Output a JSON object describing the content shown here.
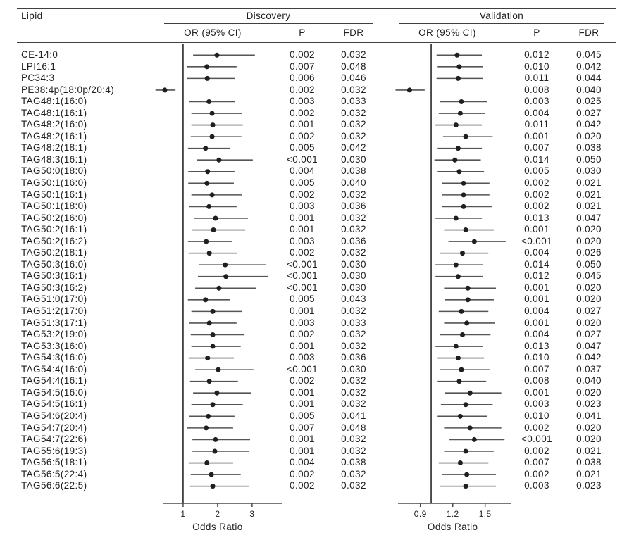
{
  "header": {
    "lipid_col": "Lipid",
    "groups": [
      {
        "label": "Discovery",
        "cols": [
          "OR (95% CI)",
          "P",
          "FDR"
        ]
      },
      {
        "label": "Validation",
        "cols": [
          "OR (95% CI)",
          "P",
          "FDR"
        ]
      }
    ]
  },
  "style": {
    "background": "#ffffff",
    "text": "#1f1f1f",
    "rule": "#3f3f3f",
    "whisker": "#555555",
    "marker": "#1f1f1f",
    "axis": "#4a4a4a"
  },
  "chart_data": {
    "type": "forest",
    "panels": {
      "discovery": {
        "name": "Discovery",
        "axis": {
          "ticks": [
            1,
            2,
            3
          ],
          "tick_labels": [
            "1",
            "2",
            "3"
          ],
          "label": "Odds Ratio",
          "ref_line": 1,
          "render_domain": [
            0.43,
            3.86
          ]
        }
      },
      "validation": {
        "name": "Validation",
        "axis": {
          "ticks": [
            0.9,
            1.2,
            1.5
          ],
          "tick_labels": [
            "0.9",
            "1.2",
            "1.5"
          ],
          "label": "Odds Ratio",
          "ref_line": 1.0,
          "render_domain": [
            0.693,
            1.737
          ]
        }
      }
    },
    "rows": [
      {
        "lipid": "CE-14:0",
        "discovery": {
          "or": 1.98,
          "lo": 1.29,
          "hi": 3.08,
          "p": "0.002",
          "fdr": "0.032"
        },
        "validation": {
          "or": 1.24,
          "lo": 1.05,
          "hi": 1.47,
          "p": "0.012",
          "fdr": "0.045"
        }
      },
      {
        "lipid": "LPI16:1",
        "discovery": {
          "or": 1.69,
          "lo": 1.12,
          "hi": 2.55,
          "p": "0.007",
          "fdr": "0.048"
        },
        "validation": {
          "or": 1.26,
          "lo": 1.06,
          "hi": 1.48,
          "p": "0.010",
          "fdr": "0.042"
        }
      },
      {
        "lipid": "PC34:3",
        "discovery": {
          "or": 1.7,
          "lo": 1.12,
          "hi": 2.51,
          "p": "0.006",
          "fdr": "0.046"
        },
        "validation": {
          "or": 1.25,
          "lo": 1.05,
          "hi": 1.48,
          "p": "0.011",
          "fdr": "0.044"
        }
      },
      {
        "lipid": "PE38:4p(18:0p/20:4)",
        "discovery": {
          "or": 0.47,
          "lo": 0.2,
          "hi": 0.78,
          "p": "0.002",
          "fdr": "0.032"
        },
        "validation": {
          "or": 0.8,
          "lo": 0.67,
          "hi": 0.94,
          "p": "0.008",
          "fdr": "0.040"
        }
      },
      {
        "lipid": "TAG48:1(16:0)",
        "discovery": {
          "or": 1.75,
          "lo": 1.18,
          "hi": 2.51,
          "p": "0.003",
          "fdr": "0.033"
        },
        "validation": {
          "or": 1.28,
          "lo": 1.08,
          "hi": 1.52,
          "p": "0.003",
          "fdr": "0.025"
        }
      },
      {
        "lipid": "TAG48:1(16:1)",
        "discovery": {
          "or": 1.84,
          "lo": 1.24,
          "hi": 2.71,
          "p": "0.002",
          "fdr": "0.032"
        },
        "validation": {
          "or": 1.27,
          "lo": 1.07,
          "hi": 1.5,
          "p": "0.004",
          "fdr": "0.027"
        }
      },
      {
        "lipid": "TAG48:2(16:0)",
        "discovery": {
          "or": 1.86,
          "lo": 1.24,
          "hi": 2.73,
          "p": "0.001",
          "fdr": "0.032"
        },
        "validation": {
          "or": 1.23,
          "lo": 1.04,
          "hi": 1.47,
          "p": "0.011",
          "fdr": "0.042"
        }
      },
      {
        "lipid": "TAG48:2(16:1)",
        "discovery": {
          "or": 1.84,
          "lo": 1.22,
          "hi": 2.69,
          "p": "0.002",
          "fdr": "0.032"
        },
        "validation": {
          "or": 1.32,
          "lo": 1.11,
          "hi": 1.57,
          "p": "0.001",
          "fdr": "0.020"
        }
      },
      {
        "lipid": "TAG48:2(18:1)",
        "discovery": {
          "or": 1.65,
          "lo": 1.14,
          "hi": 2.37,
          "p": "0.005",
          "fdr": "0.042"
        },
        "validation": {
          "or": 1.25,
          "lo": 1.06,
          "hi": 1.47,
          "p": "0.007",
          "fdr": "0.038"
        }
      },
      {
        "lipid": "TAG48:3(16:1)",
        "discovery": {
          "or": 2.04,
          "lo": 1.39,
          "hi": 3.02,
          "p": "<0.001",
          "fdr": "0.030"
        },
        "validation": {
          "or": 1.22,
          "lo": 1.03,
          "hi": 1.46,
          "p": "0.014",
          "fdr": "0.050"
        }
      },
      {
        "lipid": "TAG50:0(18:0)",
        "discovery": {
          "or": 1.71,
          "lo": 1.15,
          "hi": 2.49,
          "p": "0.004",
          "fdr": "0.038"
        },
        "validation": {
          "or": 1.26,
          "lo": 1.06,
          "hi": 1.49,
          "p": "0.005",
          "fdr": "0.030"
        }
      },
      {
        "lipid": "TAG50:1(16:0)",
        "discovery": {
          "or": 1.69,
          "lo": 1.15,
          "hi": 2.47,
          "p": "0.005",
          "fdr": "0.040"
        },
        "validation": {
          "or": 1.3,
          "lo": 1.1,
          "hi": 1.54,
          "p": "0.002",
          "fdr": "0.021"
        }
      },
      {
        "lipid": "TAG50:1(16:1)",
        "discovery": {
          "or": 1.84,
          "lo": 1.24,
          "hi": 2.71,
          "p": "0.002",
          "fdr": "0.032"
        },
        "validation": {
          "or": 1.3,
          "lo": 1.1,
          "hi": 1.54,
          "p": "0.002",
          "fdr": "0.021"
        }
      },
      {
        "lipid": "TAG50:1(18:0)",
        "discovery": {
          "or": 1.75,
          "lo": 1.18,
          "hi": 2.55,
          "p": "0.003",
          "fdr": "0.036"
        },
        "validation": {
          "or": 1.3,
          "lo": 1.1,
          "hi": 1.56,
          "p": "0.002",
          "fdr": "0.021"
        }
      },
      {
        "lipid": "TAG50:2(16:0)",
        "discovery": {
          "or": 1.94,
          "lo": 1.31,
          "hi": 2.88,
          "p": "0.001",
          "fdr": "0.032"
        },
        "validation": {
          "or": 1.23,
          "lo": 1.04,
          "hi": 1.47,
          "p": "0.013",
          "fdr": "0.047"
        }
      },
      {
        "lipid": "TAG50:2(16:1)",
        "discovery": {
          "or": 1.88,
          "lo": 1.27,
          "hi": 2.8,
          "p": "0.001",
          "fdr": "0.032"
        },
        "validation": {
          "or": 1.32,
          "lo": 1.12,
          "hi": 1.58,
          "p": "0.001",
          "fdr": "0.020"
        }
      },
      {
        "lipid": "TAG50:2(16:2)",
        "discovery": {
          "or": 1.67,
          "lo": 1.14,
          "hi": 2.43,
          "p": "0.003",
          "fdr": "0.036"
        },
        "validation": {
          "or": 1.4,
          "lo": 1.16,
          "hi": 1.69,
          "p": "<0.001",
          "fdr": "0.020"
        }
      },
      {
        "lipid": "TAG50:2(18:1)",
        "discovery": {
          "or": 1.76,
          "lo": 1.16,
          "hi": 2.57,
          "p": "0.002",
          "fdr": "0.032"
        },
        "validation": {
          "or": 1.29,
          "lo": 1.08,
          "hi": 1.53,
          "p": "0.004",
          "fdr": "0.026"
        }
      },
      {
        "lipid": "TAG50:3(16:0)",
        "discovery": {
          "or": 2.22,
          "lo": 1.45,
          "hi": 3.39,
          "p": "<0.001",
          "fdr": "0.030"
        },
        "validation": {
          "or": 1.23,
          "lo": 1.04,
          "hi": 1.48,
          "p": "0.014",
          "fdr": "0.050"
        }
      },
      {
        "lipid": "TAG50:3(16:1)",
        "discovery": {
          "or": 2.24,
          "lo": 1.43,
          "hi": 3.47,
          "p": "<0.001",
          "fdr": "0.030"
        },
        "validation": {
          "or": 1.25,
          "lo": 1.04,
          "hi": 1.48,
          "p": "0.012",
          "fdr": "0.045"
        }
      },
      {
        "lipid": "TAG50:3(16:2)",
        "discovery": {
          "or": 2.04,
          "lo": 1.35,
          "hi": 3.12,
          "p": "<0.001",
          "fdr": "0.030"
        },
        "validation": {
          "or": 1.34,
          "lo": 1.12,
          "hi": 1.6,
          "p": "0.001",
          "fdr": "0.020"
        }
      },
      {
        "lipid": "TAG51:0(17:0)",
        "discovery": {
          "or": 1.65,
          "lo": 1.14,
          "hi": 2.37,
          "p": "0.005",
          "fdr": "0.043"
        },
        "validation": {
          "or": 1.34,
          "lo": 1.13,
          "hi": 1.58,
          "p": "0.001",
          "fdr": "0.020"
        }
      },
      {
        "lipid": "TAG51:2(17:0)",
        "discovery": {
          "or": 1.86,
          "lo": 1.24,
          "hi": 2.71,
          "p": "0.001",
          "fdr": "0.032"
        },
        "validation": {
          "or": 1.28,
          "lo": 1.07,
          "hi": 1.53,
          "p": "0.004",
          "fdr": "0.027"
        }
      },
      {
        "lipid": "TAG51:3(17:1)",
        "discovery": {
          "or": 1.76,
          "lo": 1.18,
          "hi": 2.55,
          "p": "0.003",
          "fdr": "0.033"
        },
        "validation": {
          "or": 1.33,
          "lo": 1.12,
          "hi": 1.59,
          "p": "0.001",
          "fdr": "0.020"
        }
      },
      {
        "lipid": "TAG53:2(19:0)",
        "discovery": {
          "or": 1.86,
          "lo": 1.22,
          "hi": 2.78,
          "p": "0.002",
          "fdr": "0.032"
        },
        "validation": {
          "or": 1.29,
          "lo": 1.08,
          "hi": 1.55,
          "p": "0.004",
          "fdr": "0.027"
        }
      },
      {
        "lipid": "TAG53:3(16:0)",
        "discovery": {
          "or": 1.86,
          "lo": 1.24,
          "hi": 2.67,
          "p": "0.001",
          "fdr": "0.032"
        },
        "validation": {
          "or": 1.23,
          "lo": 1.04,
          "hi": 1.48,
          "p": "0.013",
          "fdr": "0.047"
        }
      },
      {
        "lipid": "TAG54:3(16:0)",
        "discovery": {
          "or": 1.71,
          "lo": 1.16,
          "hi": 2.47,
          "p": "0.003",
          "fdr": "0.036"
        },
        "validation": {
          "or": 1.25,
          "lo": 1.06,
          "hi": 1.49,
          "p": "0.010",
          "fdr": "0.042"
        }
      },
      {
        "lipid": "TAG54:4(16:0)",
        "discovery": {
          "or": 2.02,
          "lo": 1.35,
          "hi": 3.04,
          "p": "<0.001",
          "fdr": "0.030"
        },
        "validation": {
          "or": 1.28,
          "lo": 1.08,
          "hi": 1.54,
          "p": "0.007",
          "fdr": "0.037"
        }
      },
      {
        "lipid": "TAG54:4(16:1)",
        "discovery": {
          "or": 1.76,
          "lo": 1.2,
          "hi": 2.59,
          "p": "0.002",
          "fdr": "0.032"
        },
        "validation": {
          "or": 1.26,
          "lo": 1.06,
          "hi": 1.51,
          "p": "0.008",
          "fdr": "0.040"
        }
      },
      {
        "lipid": "TAG54:5(16:0)",
        "discovery": {
          "or": 1.98,
          "lo": 1.29,
          "hi": 2.98,
          "p": "0.001",
          "fdr": "0.032"
        },
        "validation": {
          "or": 1.36,
          "lo": 1.13,
          "hi": 1.65,
          "p": "0.001",
          "fdr": "0.020"
        }
      },
      {
        "lipid": "TAG54:5(16:1)",
        "discovery": {
          "or": 1.86,
          "lo": 1.24,
          "hi": 2.73,
          "p": "0.001",
          "fdr": "0.032"
        },
        "validation": {
          "or": 1.32,
          "lo": 1.09,
          "hi": 1.57,
          "p": "0.003",
          "fdr": "0.023"
        }
      },
      {
        "lipid": "TAG54:6(20:4)",
        "discovery": {
          "or": 1.73,
          "lo": 1.18,
          "hi": 2.49,
          "p": "0.005",
          "fdr": "0.041"
        },
        "validation": {
          "or": 1.27,
          "lo": 1.06,
          "hi": 1.52,
          "p": "0.010",
          "fdr": "0.041"
        }
      },
      {
        "lipid": "TAG54:7(20:4)",
        "discovery": {
          "or": 1.67,
          "lo": 1.12,
          "hi": 2.45,
          "p": "0.007",
          "fdr": "0.048"
        },
        "validation": {
          "or": 1.36,
          "lo": 1.12,
          "hi": 1.65,
          "p": "0.002",
          "fdr": "0.020"
        }
      },
      {
        "lipid": "TAG54:7(22:6)",
        "discovery": {
          "or": 1.94,
          "lo": 1.27,
          "hi": 2.94,
          "p": "0.001",
          "fdr": "0.032"
        },
        "validation": {
          "or": 1.4,
          "lo": 1.17,
          "hi": 1.68,
          "p": "<0.001",
          "fdr": "0.020"
        }
      },
      {
        "lipid": "TAG55:6(19:3)",
        "discovery": {
          "or": 1.92,
          "lo": 1.27,
          "hi": 2.92,
          "p": "0.001",
          "fdr": "0.032"
        },
        "validation": {
          "or": 1.32,
          "lo": 1.12,
          "hi": 1.58,
          "p": "0.002",
          "fdr": "0.021"
        }
      },
      {
        "lipid": "TAG56:5(18:1)",
        "discovery": {
          "or": 1.69,
          "lo": 1.16,
          "hi": 2.45,
          "p": "0.004",
          "fdr": "0.038"
        },
        "validation": {
          "or": 1.27,
          "lo": 1.07,
          "hi": 1.53,
          "p": "0.007",
          "fdr": "0.038"
        }
      },
      {
        "lipid": "TAG56:5(22:4)",
        "discovery": {
          "or": 1.82,
          "lo": 1.22,
          "hi": 2.67,
          "p": "0.002",
          "fdr": "0.032"
        },
        "validation": {
          "or": 1.33,
          "lo": 1.1,
          "hi": 1.6,
          "p": "0.002",
          "fdr": "0.021"
        }
      },
      {
        "lipid": "TAG56:6(22:5)",
        "discovery": {
          "or": 1.86,
          "lo": 1.2,
          "hi": 2.9,
          "p": "0.002",
          "fdr": "0.032"
        },
        "validation": {
          "or": 1.32,
          "lo": 1.08,
          "hi": 1.6,
          "p": "0.003",
          "fdr": "0.023"
        }
      }
    ]
  }
}
